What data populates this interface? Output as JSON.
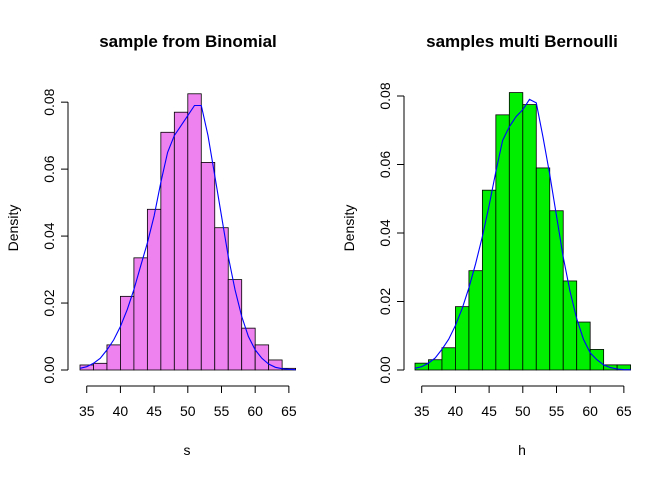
{
  "chart_data": [
    {
      "type": "bar",
      "subtype": "histogram",
      "title": "sample from Binomial",
      "xlabel": "s",
      "ylabel": "Density",
      "bar_color": "#ee82ee",
      "density_color": "#0000ff",
      "bin_edges": [
        34,
        36,
        38,
        40,
        42,
        44,
        46,
        48,
        50,
        52,
        54,
        56,
        58,
        60,
        62,
        64,
        66
      ],
      "values": [
        0.0015,
        0.002,
        0.0075,
        0.022,
        0.0335,
        0.048,
        0.071,
        0.077,
        0.0825,
        0.062,
        0.0425,
        0.027,
        0.0125,
        0.0075,
        0.003,
        0.0005
      ],
      "density_x": [
        34,
        35,
        36,
        37,
        38,
        39,
        40,
        41,
        42,
        43,
        44,
        45,
        46,
        47,
        48,
        49,
        50,
        51,
        52,
        53,
        54,
        55,
        56,
        57,
        58,
        59,
        60,
        61,
        62,
        63,
        64,
        65,
        66
      ],
      "density_y": [
        0.0005,
        0.001,
        0.002,
        0.0035,
        0.006,
        0.009,
        0.013,
        0.018,
        0.024,
        0.031,
        0.038,
        0.046,
        0.056,
        0.065,
        0.07,
        0.073,
        0.076,
        0.079,
        0.079,
        0.07,
        0.058,
        0.046,
        0.034,
        0.024,
        0.016,
        0.01,
        0.006,
        0.0035,
        0.0018,
        0.0008,
        0.0004,
        0.0002,
        0.0001
      ],
      "xticks": [
        35,
        40,
        45,
        50,
        55,
        60,
        65
      ],
      "yticks": [
        "0.00",
        "0.02",
        "0.04",
        "0.06",
        "0.08"
      ],
      "xlim": [
        34,
        66
      ],
      "ylim": [
        0,
        0.0825
      ]
    },
    {
      "type": "bar",
      "subtype": "histogram",
      "title": "samples multi Bernoulli",
      "xlabel": "h",
      "ylabel": "Density",
      "bar_color": "#00ee00",
      "density_color": "#0000ff",
      "bin_edges": [
        34,
        36,
        38,
        40,
        42,
        44,
        46,
        48,
        50,
        52,
        54,
        56,
        58,
        60,
        62,
        64,
        66
      ],
      "values": [
        0.002,
        0.003,
        0.0065,
        0.0185,
        0.029,
        0.0525,
        0.0745,
        0.081,
        0.0775,
        0.059,
        0.0465,
        0.026,
        0.014,
        0.006,
        0.0015,
        0.0015
      ],
      "density_x": [
        34,
        35,
        36,
        37,
        38,
        39,
        40,
        41,
        42,
        43,
        44,
        45,
        46,
        47,
        48,
        49,
        50,
        51,
        52,
        53,
        54,
        55,
        56,
        57,
        58,
        59,
        60,
        61,
        62,
        63,
        64,
        65,
        66
      ],
      "density_y": [
        0.0005,
        0.001,
        0.002,
        0.0035,
        0.006,
        0.009,
        0.013,
        0.018,
        0.024,
        0.031,
        0.039,
        0.048,
        0.058,
        0.067,
        0.071,
        0.074,
        0.076,
        0.079,
        0.078,
        0.068,
        0.057,
        0.045,
        0.033,
        0.023,
        0.015,
        0.009,
        0.005,
        0.003,
        0.0015,
        0.0007,
        0.0003,
        0.0001,
        0.0001
      ],
      "xticks": [
        35,
        40,
        45,
        50,
        55,
        60,
        65
      ],
      "yticks": [
        "0.00",
        "0.02",
        "0.04",
        "0.06",
        "0.08"
      ],
      "xlim": [
        34,
        66
      ],
      "ylim": [
        0,
        0.081
      ]
    }
  ]
}
